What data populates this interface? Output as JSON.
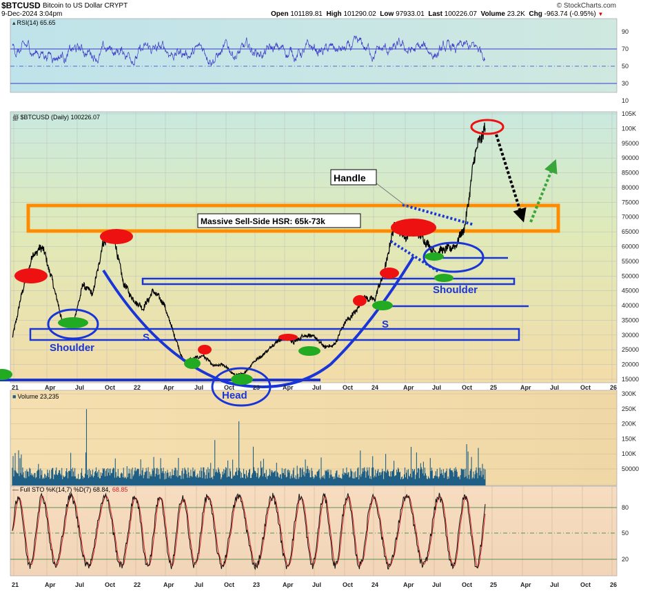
{
  "header": {
    "symbol": "$BTCUSD",
    "description": "Bitcoin to US Dollar  CRYPT",
    "datetime": "9-Dec-2024 3:04pm",
    "brand": "© StockCharts.com",
    "ohlc": {
      "open_label": "Open",
      "open": "101189.81",
      "high_label": "High",
      "high": "101290.02",
      "low_label": "Low",
      "low": "97933.01",
      "last_label": "Last",
      "last": "100226.07",
      "volume_label": "Volume",
      "volume": "23.2K",
      "chg_label": "Chg",
      "chg": "-963.74 (-0.95%)"
    }
  },
  "colors": {
    "price_line": "#000000",
    "rsi_line": "#3a3ac8",
    "volume_bars": "#1f5f86",
    "sto_k": "#111111",
    "sto_d": "#d22020",
    "pattern": "#1a35d6",
    "resistance_zone": "#ff8c00",
    "sell_marker": "#ee1111",
    "buy_marker": "#22aa22"
  },
  "chart_data": [
    {
      "type": "line",
      "panel": "RSI",
      "label": "RSI(14) 65.65",
      "ylim": [
        0,
        100
      ],
      "reference_lines": [
        70,
        50,
        30
      ],
      "ticks": [
        "90",
        "70",
        "50",
        "30",
        "10"
      ],
      "last_value": 65.65
    },
    {
      "type": "line",
      "panel": "Price",
      "label": "$BTCUSD (Daily) 100226.07",
      "y_ticks": [
        "105K",
        "100K",
        "95000",
        "90000",
        "85000",
        "80000",
        "75000",
        "70000",
        "65000",
        "60000",
        "55000",
        "50000",
        "45000",
        "40000",
        "35000",
        "30000",
        "25000",
        "20000",
        "15000"
      ],
      "ylim": [
        15000,
        105000
      ],
      "x_ticks": [
        "21",
        "Apr",
        "Jul",
        "Oct",
        "22",
        "Apr",
        "Jul",
        "Oct",
        "23",
        "Apr",
        "Jul",
        "Oct",
        "24",
        "Apr",
        "Jul",
        "Oct",
        "25",
        "Apr",
        "Jul",
        "Oct",
        "26"
      ],
      "series": [
        {
          "x": [
            "2021-01",
            "2021-02",
            "2021-03",
            "2021-04",
            "2021-05",
            "2021-06",
            "2021-07",
            "2021-08",
            "2021-09",
            "2021-10",
            "2021-11",
            "2021-12",
            "2022-01",
            "2022-02",
            "2022-03",
            "2022-04",
            "2022-05",
            "2022-06",
            "2022-07",
            "2022-08",
            "2022-09",
            "2022-10",
            "2022-11",
            "2022-12",
            "2023-01",
            "2023-02",
            "2023-03",
            "2023-04",
            "2023-05",
            "2023-06",
            "2023-07",
            "2023-08",
            "2023-09",
            "2023-10",
            "2023-11",
            "2023-12",
            "2024-01",
            "2024-02",
            "2024-03",
            "2024-04",
            "2024-05",
            "2024-06",
            "2024-07",
            "2024-08",
            "2024-09",
            "2024-10",
            "2024-11",
            "2024-12"
          ],
          "values": [
            29000,
            45000,
            57000,
            60000,
            48000,
            34000,
            33000,
            47000,
            44000,
            61000,
            65000,
            48000,
            42000,
            39000,
            45000,
            41000,
            31000,
            21000,
            22000,
            23000,
            19500,
            20000,
            16500,
            16800,
            21000,
            23500,
            27000,
            29500,
            27500,
            30000,
            29500,
            26000,
            26500,
            34000,
            37500,
            42500,
            42000,
            52000,
            68000,
            63000,
            66000,
            62000,
            58000,
            59000,
            60000,
            67000,
            92000,
            100226
          ]
        }
      ],
      "annotations": [
        {
          "text": "Massive Sell-Side HSR: 65k-73k",
          "range": [
            65000,
            73000
          ]
        },
        {
          "text": "Handle"
        },
        {
          "text": "Shoulder"
        },
        {
          "text": "Head"
        },
        {
          "text": "Shoulder"
        },
        {
          "text": "S"
        },
        {
          "text": "S"
        }
      ]
    },
    {
      "type": "bar",
      "panel": "Volume",
      "label": "Volume 23,235",
      "y_ticks": [
        "300K",
        "250K",
        "200K",
        "150K",
        "100K",
        "50000"
      ],
      "ylim": [
        0,
        300000
      ],
      "last_value": 23235
    },
    {
      "type": "line",
      "panel": "Stochastic",
      "label": "Full STO %K(14,7) %D(7) 68.84, 68.85",
      "label_k": "Full STO %K(14,7) %D(7) 68.84,",
      "label_d": "68.85",
      "ylim": [
        0,
        100
      ],
      "reference_lines": [
        80,
        50,
        20
      ],
      "ticks": [
        "80",
        "50",
        "20"
      ],
      "series": [
        {
          "name": "%K(14,7)",
          "last_value": 68.84
        },
        {
          "name": "%D(7)",
          "last_value": 68.85
        }
      ]
    }
  ]
}
